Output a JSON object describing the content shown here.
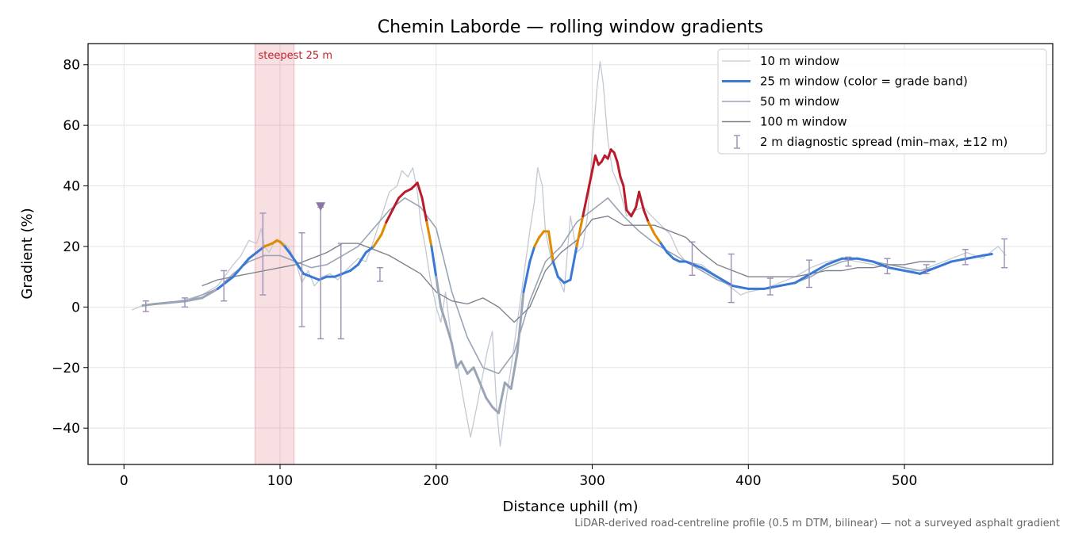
{
  "chart_data": {
    "type": "line",
    "title": "Chemin Laborde — rolling window gradients",
    "xlabel": "Distance uphill (m)",
    "ylabel": "Gradient (%)",
    "xlim": [
      -23,
      595
    ],
    "ylim": [
      -52,
      87
    ],
    "xticks": [
      0,
      100,
      200,
      300,
      400,
      500
    ],
    "yticks": [
      -40,
      -20,
      0,
      20,
      40,
      60,
      80
    ],
    "xtick_labels": [
      "0",
      "100",
      "200",
      "300",
      "400",
      "500"
    ],
    "ytick_labels": [
      "−40",
      "−20",
      "0",
      "20",
      "40",
      "60",
      "80"
    ],
    "grid": true,
    "legend_position": "top-right",
    "footnote": "LiDAR-derived road-centreline profile (0.5 m DTM, bilinear) — not a surveyed asphalt gradient",
    "annotation": {
      "text": "steepest 25 m",
      "x_range": [
        84,
        109
      ],
      "color": "#c0202e"
    },
    "marker": {
      "x": 126,
      "y": 33,
      "color": "#8a76a8"
    },
    "grade_band_colors": {
      "low": "#3a78d6",
      "mid": "#e08a00",
      "high": "#b81c2a"
    },
    "legend": [
      {
        "label": "10 m window",
        "style": "thin",
        "color": "#c2c9d2"
      },
      {
        "label": "25 m window (color = grade band)",
        "style": "thick",
        "color": "#3a78d6"
      },
      {
        "label": "50 m window",
        "style": "medium",
        "color": "#99a5b5"
      },
      {
        "label": "100 m window",
        "style": "medium",
        "color": "#7d838e"
      },
      {
        "label": "2 m diagnostic spread (min–max, ±12 m)",
        "style": "errorbar",
        "color": "#9c8fb5"
      }
    ],
    "series": [
      {
        "name": "10 m window",
        "color": "#c2c9d2",
        "x": [
          5,
          12,
          20,
          30,
          40,
          50,
          60,
          70,
          75,
          80,
          85,
          88,
          90,
          93,
          96,
          100,
          105,
          110,
          114,
          118,
          122,
          127,
          132,
          137,
          142,
          146,
          150,
          155,
          160,
          165,
          170,
          175,
          178,
          182,
          185,
          188,
          190,
          193,
          196,
          200,
          203,
          206,
          210,
          214,
          218,
          222,
          226,
          230,
          233,
          236,
          239,
          241,
          243,
          245,
          248,
          252,
          256,
          260,
          263,
          265,
          268,
          270,
          274,
          278,
          282,
          286,
          290,
          294,
          297,
          300,
          303,
          305,
          307,
          310,
          313,
          317,
          322,
          328,
          333,
          338,
          342,
          346,
          350,
          355,
          360,
          370,
          380,
          390,
          395,
          400,
          410,
          420,
          430,
          440,
          450,
          460,
          470,
          480,
          490,
          500,
          510,
          520,
          530,
          540,
          550,
          555,
          560,
          565
        ],
        "y": [
          -1,
          0.5,
          1,
          1.5,
          2.5,
          4,
          7,
          14,
          17,
          22,
          21,
          26,
          20,
          18,
          21,
          22,
          20,
          15,
          8,
          12,
          7,
          10,
          11,
          9,
          12,
          14,
          16,
          15,
          22,
          30,
          38,
          40,
          45,
          43,
          46,
          38,
          28,
          20,
          10,
          0,
          -5,
          5,
          -12,
          -20,
          -32,
          -43,
          -33,
          -22,
          -14,
          -8,
          -35,
          -46,
          -38,
          -30,
          -20,
          -5,
          10,
          25,
          35,
          46,
          40,
          25,
          15,
          10,
          5,
          30,
          18,
          20,
          30,
          52,
          72,
          81,
          74,
          55,
          45,
          40,
          30,
          32,
          33,
          30,
          28,
          26,
          24,
          18,
          15,
          14,
          10,
          6,
          4,
          5,
          6,
          8,
          10,
          13,
          15,
          16,
          15,
          14,
          13,
          12,
          12,
          14,
          16,
          18,
          16,
          18,
          20,
          17
        ]
      },
      {
        "name": "25 m window (color = grade band)",
        "color": "#3a78d6",
        "x": [
          12,
          20,
          30,
          40,
          50,
          60,
          70,
          75,
          80,
          85,
          90,
          95,
          98,
          100,
          103,
          106,
          110,
          115,
          120,
          125,
          130,
          135,
          140,
          145,
          150,
          155,
          160,
          165,
          168,
          172,
          176,
          180,
          184,
          186,
          188,
          191,
          194,
          197,
          200,
          203,
          206,
          210,
          213,
          216,
          220,
          224,
          228,
          232,
          236,
          240,
          244,
          248,
          252,
          256,
          260,
          263,
          266,
          269,
          272,
          275,
          278,
          282,
          286,
          290,
          294,
          298,
          300,
          302,
          304,
          306,
          308,
          310,
          312,
          314,
          316,
          318,
          320,
          322,
          325,
          328,
          330,
          333,
          336,
          340,
          344,
          348,
          352,
          356,
          360,
          365,
          370,
          380,
          390,
          400,
          410,
          420,
          430,
          440,
          450,
          460,
          470,
          480,
          490,
          500,
          510,
          520,
          530,
          540,
          550,
          556
        ],
        "y": [
          0.5,
          1,
          1.5,
          2,
          3,
          6,
          10,
          13,
          16,
          18,
          20,
          21,
          22,
          21.5,
          20,
          18,
          15,
          11,
          10,
          9,
          10,
          10,
          11,
          12,
          14,
          18,
          20,
          24,
          28,
          32,
          36,
          38,
          39,
          40,
          41,
          36,
          28,
          20,
          10,
          0,
          -5,
          -12,
          -20,
          -18,
          -22,
          -20,
          -25,
          -30,
          -33,
          -35,
          -25,
          -27,
          -15,
          5,
          15,
          20,
          23,
          25,
          25,
          15,
          10,
          8,
          9,
          20,
          30,
          40,
          45,
          50,
          47,
          48,
          50,
          49,
          52,
          51,
          48,
          43,
          40,
          32,
          30,
          33,
          38,
          32,
          28,
          24,
          21,
          18,
          16,
          15,
          15,
          14,
          13,
          10,
          7,
          6,
          6,
          7,
          8,
          11,
          14,
          16,
          16,
          15,
          13,
          12,
          11,
          13,
          15,
          16,
          17,
          17.5
        ]
      },
      {
        "name": "50 m window",
        "color": "#99a5b5",
        "x": [
          25,
          40,
          60,
          70,
          80,
          90,
          100,
          110,
          120,
          130,
          140,
          150,
          160,
          170,
          180,
          190,
          200,
          210,
          220,
          230,
          240,
          250,
          260,
          270,
          280,
          290,
          300,
          310,
          320,
          330,
          340,
          350,
          360,
          370,
          380,
          390,
          400,
          410,
          420,
          430,
          440,
          450,
          460,
          470,
          480,
          490,
          500,
          510,
          520,
          530,
          540
        ],
        "y": [
          1,
          2,
          6,
          11,
          15,
          17,
          17,
          15,
          13,
          14,
          17,
          20,
          26,
          32,
          36,
          33,
          26,
          5,
          -10,
          -20,
          -22,
          -15,
          2,
          15,
          20,
          28,
          32,
          36,
          30,
          25,
          21,
          18,
          15,
          12,
          9,
          7,
          6,
          6,
          7,
          8,
          10,
          13,
          15,
          16,
          15,
          14,
          13,
          12,
          13,
          15,
          16
        ]
      },
      {
        "name": "100 m window",
        "color": "#7d838e",
        "x": [
          50,
          60,
          70,
          80,
          90,
          100,
          110,
          120,
          130,
          140,
          150,
          160,
          170,
          180,
          190,
          200,
          210,
          220,
          230,
          240,
          250,
          260,
          270,
          280,
          290,
          300,
          310,
          320,
          330,
          340,
          350,
          360,
          370,
          380,
          390,
          400,
          410,
          420,
          430,
          440,
          450,
          460,
          470,
          480,
          490,
          500,
          510,
          520
        ],
        "y": [
          7,
          9,
          10,
          11,
          12,
          13,
          14,
          16,
          18,
          21,
          21,
          19,
          17,
          14,
          11,
          5,
          2,
          1,
          3,
          0,
          -5,
          0,
          12,
          18,
          22,
          29,
          30,
          27,
          27,
          27,
          25,
          23,
          18,
          14,
          12,
          10,
          10,
          10,
          10,
          11,
          12,
          12,
          13,
          13,
          14,
          14,
          15,
          15
        ]
      }
    ],
    "error_bars": [
      {
        "x": 14,
        "ymin": -1.5,
        "ymax": 2
      },
      {
        "x": 39,
        "ymin": 0,
        "ymax": 3
      },
      {
        "x": 64,
        "ymin": 2,
        "ymax": 12
      },
      {
        "x": 89,
        "ymin": 4,
        "ymax": 31
      },
      {
        "x": 114,
        "ymin": -6.5,
        "ymax": 24.5
      },
      {
        "x": 126,
        "ymin": -10.5,
        "ymax": 33
      },
      {
        "x": 139,
        "ymin": -10.5,
        "ymax": 21
      },
      {
        "x": 164,
        "ymin": 8.5,
        "ymax": 13
      },
      {
        "x": 364,
        "ymin": 10.5,
        "ymax": 21.5
      },
      {
        "x": 389,
        "ymin": 1.5,
        "ymax": 17.5
      },
      {
        "x": 414,
        "ymin": 4,
        "ymax": 9.5
      },
      {
        "x": 439,
        "ymin": 6.5,
        "ymax": 15.5
      },
      {
        "x": 464,
        "ymin": 13.5,
        "ymax": 16.5
      },
      {
        "x": 489,
        "ymin": 11,
        "ymax": 16
      },
      {
        "x": 514,
        "ymin": 11,
        "ymax": 14
      },
      {
        "x": 539,
        "ymin": 14,
        "ymax": 19
      },
      {
        "x": 564,
        "ymin": 13,
        "ymax": 22.5
      }
    ]
  }
}
